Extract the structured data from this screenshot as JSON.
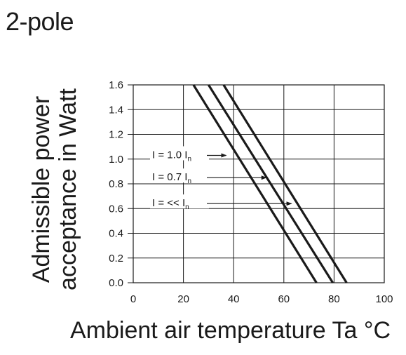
{
  "title": "2-pole",
  "chart_data": {
    "type": "line",
    "xlabel": "Ambient air temperature Ta °C",
    "ylabel": [
      "Admissible power",
      "acceptance in Watt"
    ],
    "xlim": [
      0,
      100
    ],
    "ylim": [
      0,
      1.6
    ],
    "x_ticks": [
      "0",
      "20",
      "40",
      "60",
      "80",
      "100"
    ],
    "y_ticks": [
      "0.0",
      "0.2",
      "0.4",
      "0.6",
      "0.8",
      "1.0",
      "1.2",
      "1.4",
      "1.6"
    ],
    "grid": true,
    "series": [
      {
        "name": "I = 1.0 In",
        "x": [
          24,
          73
        ],
        "y": [
          1.6,
          0
        ]
      },
      {
        "name": "I = 0.7 In",
        "x": [
          30,
          79.5
        ],
        "y": [
          1.6,
          0
        ]
      },
      {
        "name": "I = << In",
        "x": [
          36,
          85
        ],
        "y": [
          1.6,
          0
        ]
      }
    ],
    "annotations": [
      {
        "main": "I = 1.0 I",
        "sub": "n",
        "point_x": 37,
        "point_y": 1.03
      },
      {
        "main": "I = 0.7 I",
        "sub": "n",
        "point_x": 53,
        "point_y": 0.85
      },
      {
        "main": "I = << I",
        "sub": "n",
        "point_x": 63,
        "point_y": 0.64
      }
    ]
  }
}
